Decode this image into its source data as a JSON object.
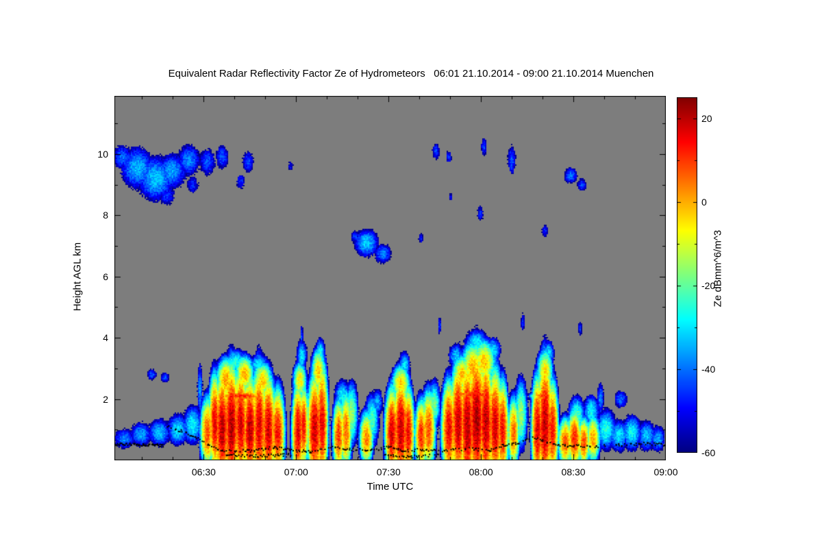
{
  "chart_data": {
    "type": "heatmap",
    "title": "Equivalent Radar Reflectivity Factor Ze of Hydrometeors   06:01 21.10.2014 - 09:00 21.10.2014 Muenchen",
    "xlabel": "Time UTC",
    "ylabel": "Height AGL km",
    "colorbar_label": "Ze dBmm^6/m^3",
    "colormap": "jet",
    "x_range_hours": [
      6.0167,
      9.0
    ],
    "y_range_km": [
      0,
      11.9
    ],
    "value_range_db": [
      -60,
      25
    ],
    "x_ticks": [
      {
        "t": 6.5,
        "label": "06:30"
      },
      {
        "t": 7.0,
        "label": "07:00"
      },
      {
        "t": 7.5,
        "label": "07:30"
      },
      {
        "t": 8.0,
        "label": "08:00"
      },
      {
        "t": 8.5,
        "label": "08:30"
      },
      {
        "t": 9.0,
        "label": "09:00"
      }
    ],
    "y_ticks": [
      {
        "km": 2,
        "label": "2"
      },
      {
        "km": 4,
        "label": "4"
      },
      {
        "km": 6,
        "label": "6"
      },
      {
        "km": 8,
        "label": "8"
      },
      {
        "km": 10,
        "label": "10"
      }
    ],
    "colorbar_ticks": [
      {
        "v": 20,
        "label": "20"
      },
      {
        "v": 0,
        "label": "0"
      },
      {
        "v": -20,
        "label": "-20"
      },
      {
        "v": -40,
        "label": "-40"
      },
      {
        "v": -60,
        "label": "-60"
      }
    ],
    "colors": {
      "plot_background": "#7d7d7d",
      "frame": "#000000",
      "page_background": "#ffffff",
      "melting_layer_dots": "#000000"
    },
    "echoes_format": "[time_utc_hours, height_km, time_radius_h, height_radius_km, peak_ze_db]",
    "echoes": [
      [
        6.06,
        9.9,
        0.055,
        0.45,
        -40
      ],
      [
        6.14,
        9.55,
        0.09,
        0.7,
        -34
      ],
      [
        6.24,
        9.2,
        0.1,
        0.75,
        -33
      ],
      [
        6.33,
        9.45,
        0.08,
        0.6,
        -36
      ],
      [
        6.42,
        9.8,
        0.065,
        0.55,
        -38
      ],
      [
        6.52,
        9.75,
        0.05,
        0.5,
        -42
      ],
      [
        6.3,
        8.65,
        0.055,
        0.4,
        -45
      ],
      [
        6.44,
        9.0,
        0.04,
        0.35,
        -46
      ],
      [
        6.6,
        9.9,
        0.04,
        0.45,
        -42
      ],
      [
        6.74,
        9.75,
        0.035,
        0.4,
        -43
      ],
      [
        6.7,
        9.1,
        0.03,
        0.3,
        -46
      ],
      [
        6.97,
        9.6,
        0.02,
        0.22,
        -50
      ],
      [
        7.38,
        7.1,
        0.065,
        0.45,
        -32
      ],
      [
        7.47,
        6.75,
        0.05,
        0.35,
        -38
      ],
      [
        7.32,
        7.3,
        0.03,
        0.25,
        -45
      ],
      [
        7.68,
        7.25,
        0.018,
        0.25,
        -48
      ],
      [
        7.76,
        10.1,
        0.025,
        0.32,
        -44
      ],
      [
        7.83,
        9.9,
        0.02,
        0.26,
        -46
      ],
      [
        7.84,
        8.6,
        0.015,
        0.2,
        -50
      ],
      [
        8.0,
        8.05,
        0.02,
        0.33,
        -46
      ],
      [
        8.02,
        10.25,
        0.02,
        0.35,
        -44
      ],
      [
        8.17,
        9.8,
        0.025,
        0.55,
        -42
      ],
      [
        8.35,
        7.5,
        0.022,
        0.25,
        -46
      ],
      [
        8.49,
        9.3,
        0.04,
        0.3,
        -40
      ],
      [
        8.55,
        9.0,
        0.03,
        0.25,
        -44
      ],
      [
        8.54,
        4.3,
        0.013,
        0.3,
        -46
      ],
      [
        8.23,
        4.5,
        0.013,
        0.35,
        -44
      ],
      [
        7.78,
        4.4,
        0.012,
        0.35,
        -45
      ],
      [
        6.07,
        0.7,
        0.06,
        0.35,
        -38
      ],
      [
        6.16,
        0.85,
        0.06,
        0.4,
        -35
      ],
      [
        6.26,
        0.9,
        0.06,
        0.45,
        -33
      ],
      [
        6.36,
        1.0,
        0.055,
        0.5,
        -30
      ],
      [
        6.44,
        1.15,
        0.05,
        0.6,
        -28
      ],
      [
        6.22,
        2.8,
        0.03,
        0.2,
        -42
      ],
      [
        6.29,
        2.7,
        0.025,
        0.18,
        -40
      ],
      [
        6.48,
        2.3,
        0.015,
        0.9,
        -36
      ],
      [
        6.52,
        0.9,
        0.03,
        0.9,
        8
      ],
      [
        6.56,
        1.2,
        0.025,
        1.2,
        16
      ],
      [
        6.6,
        1.0,
        0.03,
        1.4,
        20
      ],
      [
        6.65,
        1.1,
        0.03,
        1.5,
        22
      ],
      [
        6.7,
        1.2,
        0.03,
        1.4,
        18
      ],
      [
        6.75,
        1.0,
        0.03,
        1.3,
        20
      ],
      [
        6.8,
        1.1,
        0.03,
        1.5,
        17
      ],
      [
        6.85,
        1.0,
        0.03,
        1.3,
        18
      ],
      [
        6.9,
        0.9,
        0.03,
        1.1,
        14
      ],
      [
        6.62,
        2.6,
        0.04,
        0.6,
        2
      ],
      [
        6.72,
        2.8,
        0.04,
        0.5,
        0
      ],
      [
        6.82,
        2.6,
        0.04,
        0.5,
        -2
      ],
      [
        6.67,
        3.2,
        0.055,
        0.4,
        -25
      ],
      [
        6.8,
        3.1,
        0.05,
        0.35,
        -28
      ],
      [
        6.7,
        2.1,
        0.12,
        0.13,
        12
      ],
      [
        7.01,
        0.9,
        0.025,
        1.2,
        17
      ],
      [
        7.04,
        1.1,
        0.02,
        1.0,
        14
      ],
      [
        7.02,
        2.6,
        0.03,
        0.5,
        -5
      ],
      [
        7.03,
        3.4,
        0.028,
        0.5,
        -30
      ],
      [
        7.03,
        4.0,
        0.01,
        0.5,
        -43
      ],
      [
        7.1,
        1.0,
        0.03,
        1.3,
        19
      ],
      [
        7.14,
        1.2,
        0.025,
        1.5,
        16
      ],
      [
        7.12,
        2.9,
        0.03,
        0.6,
        -2
      ],
      [
        7.13,
        3.5,
        0.025,
        0.45,
        -26
      ],
      [
        7.23,
        0.8,
        0.025,
        0.9,
        10
      ],
      [
        7.27,
        0.95,
        0.025,
        1.0,
        6
      ],
      [
        7.3,
        1.5,
        0.03,
        0.9,
        -15
      ],
      [
        7.25,
        2.1,
        0.04,
        0.5,
        -28
      ],
      [
        7.38,
        0.7,
        0.03,
        0.7,
        4
      ],
      [
        7.41,
        1.3,
        0.035,
        0.8,
        -22
      ],
      [
        7.44,
        1.9,
        0.03,
        0.45,
        -35
      ],
      [
        7.52,
        0.9,
        0.03,
        1.1,
        18
      ],
      [
        7.57,
        1.0,
        0.03,
        1.3,
        20
      ],
      [
        7.61,
        0.9,
        0.025,
        1.1,
        15
      ],
      [
        7.57,
        2.5,
        0.04,
        0.5,
        -3
      ],
      [
        7.59,
        3.1,
        0.03,
        0.45,
        -30
      ],
      [
        7.68,
        0.8,
        0.025,
        0.9,
        12
      ],
      [
        7.72,
        1.0,
        0.03,
        1.0,
        8
      ],
      [
        7.75,
        1.8,
        0.03,
        0.7,
        -18
      ],
      [
        7.83,
        1.0,
        0.03,
        1.2,
        16
      ],
      [
        7.88,
        1.2,
        0.03,
        1.5,
        19
      ],
      [
        7.93,
        1.1,
        0.03,
        1.6,
        21
      ],
      [
        7.98,
        1.3,
        0.035,
        1.7,
        22
      ],
      [
        8.03,
        1.2,
        0.03,
        1.6,
        20
      ],
      [
        8.08,
        1.1,
        0.03,
        1.4,
        18
      ],
      [
        8.12,
        1.0,
        0.025,
        1.2,
        15
      ],
      [
        7.9,
        2.8,
        0.04,
        0.5,
        -1
      ],
      [
        7.96,
        3.0,
        0.05,
        0.7,
        0
      ],
      [
        8.02,
        3.2,
        0.05,
        0.6,
        -2
      ],
      [
        7.98,
        3.8,
        0.06,
        0.45,
        -28
      ],
      [
        8.07,
        3.6,
        0.04,
        0.4,
        -30
      ],
      [
        7.87,
        3.4,
        0.04,
        0.4,
        -32
      ],
      [
        7.97,
        2.15,
        0.11,
        0.13,
        13
      ],
      [
        8.18,
        0.9,
        0.025,
        0.9,
        6
      ],
      [
        8.22,
        1.5,
        0.03,
        1.0,
        -15
      ],
      [
        8.31,
        1.0,
        0.025,
        1.3,
        17
      ],
      [
        8.35,
        1.2,
        0.03,
        1.6,
        20
      ],
      [
        8.39,
        1.0,
        0.025,
        1.2,
        14
      ],
      [
        8.35,
        2.9,
        0.035,
        0.6,
        -4
      ],
      [
        8.37,
        3.5,
        0.03,
        0.4,
        -30
      ],
      [
        8.34,
        2.1,
        0.05,
        0.12,
        11
      ],
      [
        8.46,
        0.6,
        0.03,
        0.6,
        8
      ],
      [
        8.51,
        0.7,
        0.03,
        0.7,
        12
      ],
      [
        8.56,
        0.6,
        0.025,
        0.6,
        9
      ],
      [
        8.61,
        0.7,
        0.03,
        0.6,
        2
      ],
      [
        8.52,
        1.4,
        0.04,
        0.6,
        -20
      ],
      [
        8.6,
        1.6,
        0.04,
        0.5,
        -28
      ],
      [
        8.65,
        2.0,
        0.02,
        0.6,
        -38
      ],
      [
        8.68,
        1.0,
        0.05,
        0.6,
        -25
      ],
      [
        8.75,
        0.8,
        0.05,
        0.5,
        -30
      ],
      [
        8.82,
        0.9,
        0.05,
        0.55,
        -28
      ],
      [
        8.9,
        0.8,
        0.05,
        0.5,
        -33
      ],
      [
        8.96,
        0.7,
        0.04,
        0.45,
        -35
      ],
      [
        8.76,
        2.0,
        0.04,
        0.32,
        -40
      ]
    ],
    "melting_layer_segments": [
      [
        [
          6.02,
          0.52
        ],
        [
          6.22,
          0.5
        ],
        [
          6.28,
          0.48
        ]
      ],
      [
        [
          6.3,
          1.12
        ],
        [
          6.38,
          0.95
        ],
        [
          6.46,
          0.72
        ],
        [
          6.52,
          0.5
        ],
        [
          6.6,
          0.33
        ],
        [
          6.75,
          0.3
        ],
        [
          6.88,
          0.42
        ],
        [
          6.98,
          0.32
        ],
        [
          7.08,
          0.28
        ],
        [
          7.18,
          0.45
        ],
        [
          7.3,
          0.35
        ],
        [
          7.42,
          0.33
        ],
        [
          7.5,
          0.45
        ],
        [
          7.58,
          0.3
        ],
        [
          7.68,
          0.35
        ],
        [
          7.8,
          0.3
        ],
        [
          7.92,
          0.38
        ],
        [
          8.05,
          0.32
        ],
        [
          8.12,
          0.5
        ],
        [
          8.2,
          0.55
        ],
        [
          8.28,
          0.75
        ],
        [
          8.36,
          0.6
        ],
        [
          8.45,
          0.48
        ],
        [
          8.6,
          0.45
        ],
        [
          8.75,
          0.5
        ],
        [
          8.9,
          0.55
        ],
        [
          9.0,
          0.5
        ]
      ],
      [
        [
          6.62,
          0.17
        ],
        [
          6.8,
          0.14
        ],
        [
          6.98,
          0.19
        ]
      ],
      [
        [
          7.48,
          0.16
        ],
        [
          7.62,
          0.12
        ],
        [
          7.78,
          0.17
        ]
      ]
    ]
  }
}
